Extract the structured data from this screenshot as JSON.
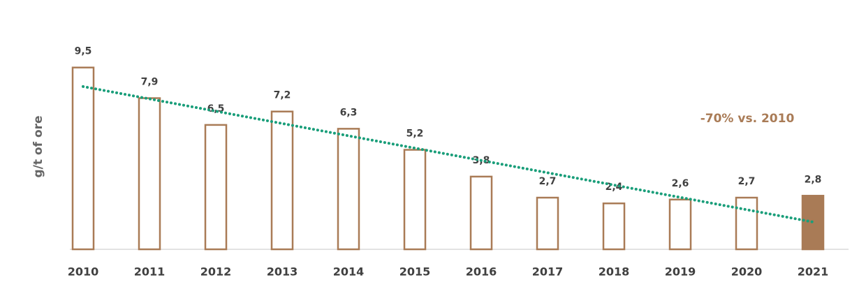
{
  "chart_data": {
    "type": "bar",
    "y_label": "g/t of ore",
    "annotation": "-70% vs. 2010",
    "categories": [
      "2010",
      "2011",
      "2012",
      "2013",
      "2014",
      "2015",
      "2016",
      "2017",
      "2018",
      "2019",
      "2020",
      "2021"
    ],
    "values": [
      9.5,
      7.9,
      6.5,
      7.2,
      6.3,
      5.2,
      3.8,
      2.7,
      2.4,
      2.6,
      2.7,
      2.8
    ],
    "value_labels": [
      "9,5",
      "7,9",
      "6,5",
      "7,2",
      "6,3",
      "5,2",
      "3,8",
      "2,7",
      "2,4",
      "2,6",
      "2,7",
      "2,8"
    ],
    "color": "#a97b56",
    "fills": [
      "#ffffff",
      "#ffffff",
      "#ffffff",
      "#ffffff",
      "#ffffff",
      "#ffffff",
      "#ffffff",
      "#ffffff",
      "#ffffff",
      "#ffffff",
      "#ffffff",
      "#a97b56"
    ],
    "trendline": true,
    "trendline_color": "#1a9e7a",
    "ylim": [
      0,
      10
    ]
  }
}
